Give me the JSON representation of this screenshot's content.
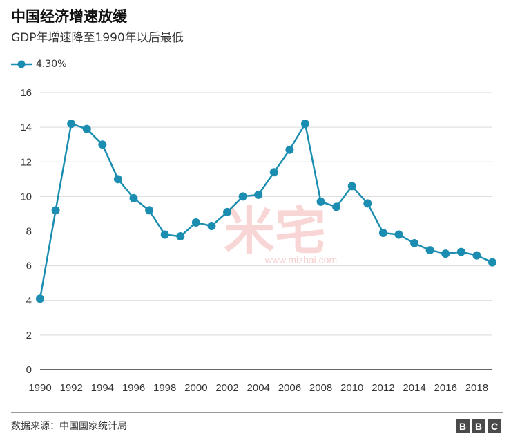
{
  "header": {
    "title": "中国经济增速放缓",
    "subtitle": "GDP年增速降至1990年以后最低"
  },
  "legend": {
    "label": "4.30%"
  },
  "footer": {
    "source": "数据来源：中国国家统计局",
    "logo_letters": [
      "B",
      "B",
      "C"
    ]
  },
  "watermark": {
    "text": "米宅",
    "url": "www.mizhai.com"
  },
  "colors": {
    "series": "#1b8db1",
    "grid": "#d9d9d9",
    "axis": "#333333",
    "watermark": "#f6c9c9"
  },
  "chart_data": {
    "type": "line",
    "title": "中国经济增速放缓",
    "subtitle": "GDP年增速降至1990年以后最低",
    "xlabel": "",
    "ylabel": "",
    "x": [
      1990,
      1991,
      1992,
      1993,
      1994,
      1995,
      1996,
      1997,
      1998,
      1999,
      2000,
      2001,
      2002,
      2003,
      2004,
      2005,
      2006,
      2007,
      2008,
      2009,
      2010,
      2011,
      2012,
      2013,
      2014,
      2015,
      2016,
      2017,
      2018,
      2019
    ],
    "series": [
      {
        "name": "4.30%",
        "values": [
          4.1,
          9.2,
          14.2,
          13.9,
          13.0,
          11.0,
          9.9,
          9.2,
          7.8,
          7.7,
          8.5,
          8.3,
          9.1,
          10.0,
          10.1,
          11.4,
          12.7,
          14.2,
          9.7,
          9.4,
          10.6,
          9.6,
          7.9,
          7.8,
          7.3,
          6.9,
          6.7,
          6.8,
          6.6,
          6.2
        ]
      }
    ],
    "xticks": [
      "1990",
      "1992",
      "1994",
      "1996",
      "1998",
      "2000",
      "2002",
      "2004",
      "2006",
      "2008",
      "2010",
      "2012",
      "2014",
      "2016",
      "2018"
    ],
    "yticks": [
      "0",
      "2",
      "4",
      "6",
      "8",
      "10",
      "12",
      "14",
      "16"
    ],
    "xlim": [
      1990,
      2019
    ],
    "ylim": [
      0,
      16
    ],
    "grid": true,
    "legend_position": "top-left"
  }
}
